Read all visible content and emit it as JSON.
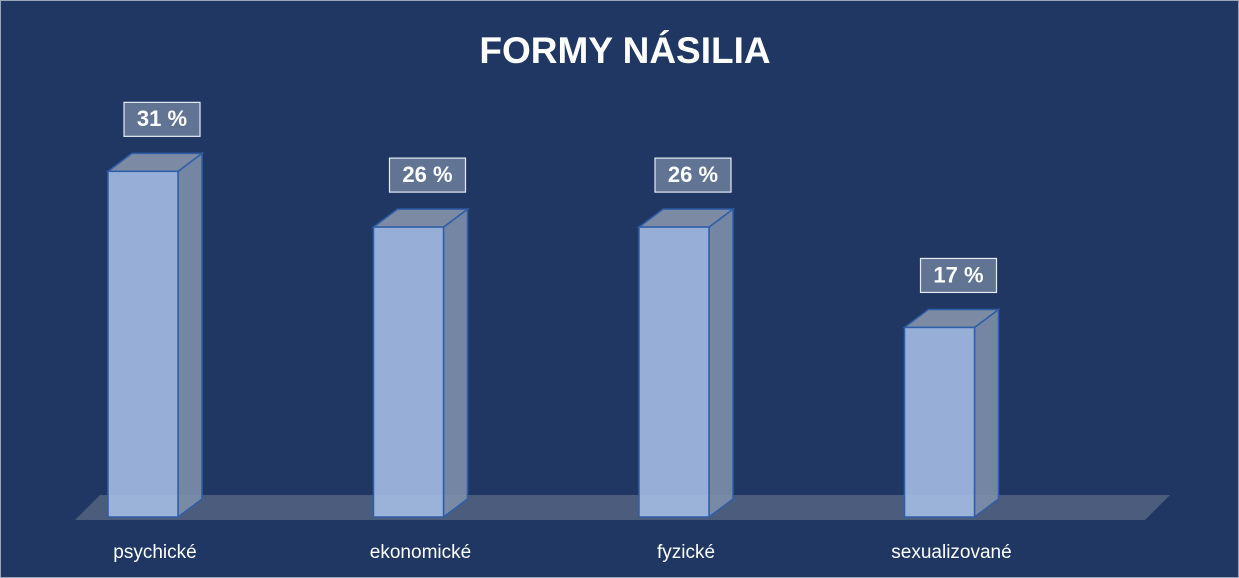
{
  "chart_data": {
    "type": "bar3d",
    "title": "FORMY NÁSILIA",
    "categories": [
      "psychické",
      "ekonomické",
      "fyzické",
      "sexualizované"
    ],
    "values": [
      31,
      26,
      26,
      17
    ],
    "value_labels": [
      "31 %",
      "26 %",
      "26 %",
      "17 %"
    ],
    "color": "#a4bbe3"
  }
}
